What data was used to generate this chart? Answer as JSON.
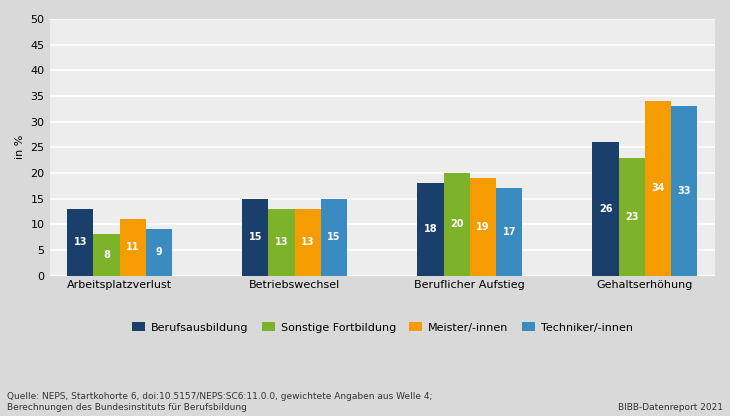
{
  "categories": [
    "Arbeitsplatzverlust",
    "Betriebswechsel",
    "Beruflicher Aufstieg",
    "Gehaltserhöhung"
  ],
  "series": {
    "Berufsausbildung": [
      13,
      15,
      18,
      26
    ],
    "Sonstige Fortbildung": [
      8,
      13,
      20,
      23
    ],
    "Meister/-innen": [
      11,
      13,
      19,
      34
    ],
    "Techniker/-innen": [
      9,
      15,
      17,
      33
    ]
  },
  "colors": {
    "Berufsausbildung": "#1b3f6b",
    "Sonstige Fortbildung": "#7db32a",
    "Meister/-innen": "#f59c00",
    "Techniker/-innen": "#3a8bbf"
  },
  "ylabel": "in %",
  "ylim": [
    0,
    50
  ],
  "yticks": [
    0,
    5,
    10,
    15,
    20,
    25,
    30,
    35,
    40,
    45,
    50
  ],
  "background_color": "#d9d9d9",
  "plot_background_color": "#e0e0e0",
  "bar_width": 0.15,
  "source_text": "Quelle: NEPS, Startkohorte 6, doi:10.5157/NEPS:SC6:11.0.0, gewichtete Angaben aus Welle 4;\nBerechnungen des Bundesinstituts für Berufsbildung",
  "watermark": "BIBB-Datenreport 2021",
  "label_fontsize": 7,
  "axis_fontsize": 8,
  "legend_fontsize": 8,
  "source_fontsize": 6.5
}
